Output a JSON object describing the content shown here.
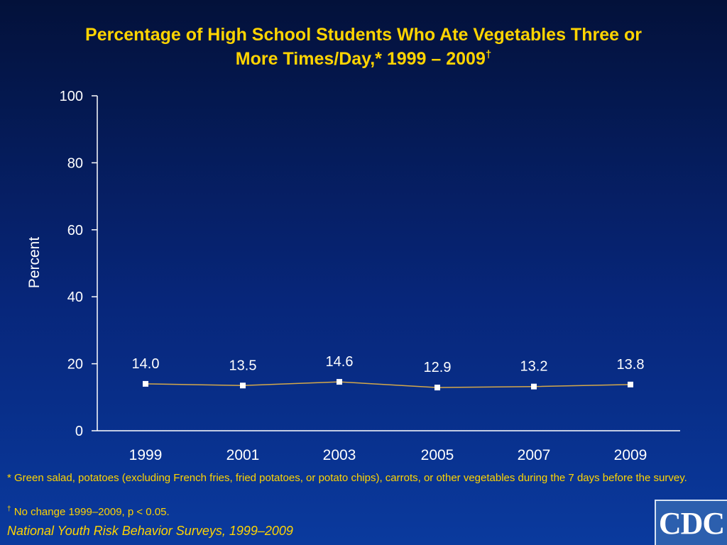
{
  "title": {
    "line1": "Percentage of High School Students Who Ate Vegetables Three or",
    "line2": "More Times/Day,* 1999 – 2009",
    "mark": "†"
  },
  "chart_data": {
    "type": "line",
    "x": [
      "1999",
      "2001",
      "2003",
      "2005",
      "2007",
      "2009"
    ],
    "values": [
      14.0,
      13.5,
      14.6,
      12.9,
      13.2,
      13.8
    ],
    "data_labels": [
      "14.0",
      "13.5",
      "14.6",
      "12.9",
      "13.2",
      "13.8"
    ],
    "ylabel": "Percent",
    "ylim": [
      0,
      100
    ],
    "yticks": [
      0,
      20,
      40,
      60,
      80,
      100
    ],
    "grid": false,
    "line_color": "#d4a84a",
    "marker_color": "#ffffff"
  },
  "footnotes": {
    "asterisk": "* Green salad, potatoes (excluding French fries, fried potatoes, or potato chips), carrots, or other vegetables during the 7 days before the survey.",
    "dagger_mark": "†",
    "dagger_text": " No change 1999–2009, p < 0.05."
  },
  "source": "National Youth Risk Behavior Surveys, 1999–2009",
  "logo": {
    "text": "CDC"
  },
  "colors": {
    "title": "#ffd400",
    "axis": "#ffffff",
    "background": "#07267a"
  }
}
